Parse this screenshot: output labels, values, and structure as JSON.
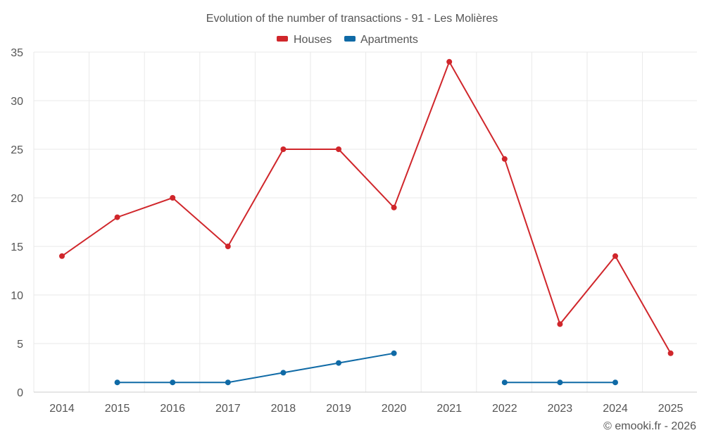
{
  "chart_data": {
    "type": "line",
    "title": "Evolution of the number of transactions - 91 - Les Molières",
    "categories": [
      "2014",
      "2015",
      "2016",
      "2017",
      "2018",
      "2019",
      "2020",
      "2021",
      "2022",
      "2023",
      "2024",
      "2025"
    ],
    "series": [
      {
        "name": "Houses",
        "color": "#d0262b",
        "values": [
          14,
          18,
          20,
          15,
          25,
          25,
          19,
          34,
          24,
          7,
          14,
          4
        ]
      },
      {
        "name": "Apartments",
        "color": "#0f6aa6",
        "values": [
          null,
          1,
          1,
          1,
          2,
          3,
          4,
          null,
          1,
          1,
          1,
          null
        ]
      }
    ],
    "yticks": [
      "0",
      "5",
      "10",
      "15",
      "20",
      "25",
      "30",
      "35"
    ],
    "ylim": [
      0,
      35
    ],
    "xlabel": "",
    "ylabel": "",
    "grid": true,
    "legend": "top-center"
  },
  "credit": "© emooki.fr - 2026"
}
